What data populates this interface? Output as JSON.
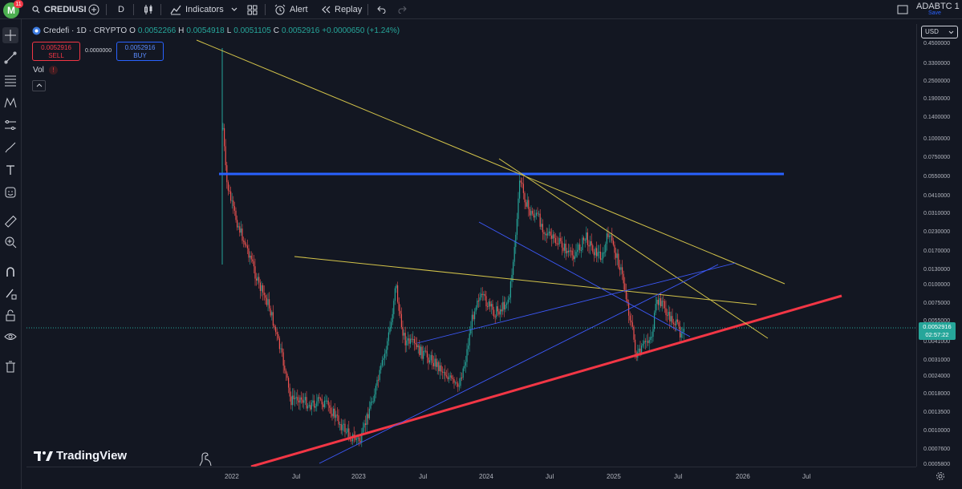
{
  "topbar": {
    "logo_letter": "M",
    "badge": "11",
    "symbol": "CREDIUSI",
    "interval": "D",
    "indicators": "Indicators",
    "alert": "Alert",
    "replay": "Replay",
    "layout_name": "ADABTC 1",
    "save": "Save"
  },
  "legend": {
    "name": "Credefi · 1D · CRYPTO",
    "o_label": "O",
    "o": "0.0052266",
    "h_label": "H",
    "h": "0.0054918",
    "l_label": "L",
    "l": "0.0051105",
    "c_label": "C",
    "c": "0.0052916",
    "change": "+0.0000650 (+1.24%)"
  },
  "trade": {
    "sell_price": "0.0052916",
    "sell_label": "SELL",
    "spread": "0.0000000",
    "buy_price": "0.0052916",
    "buy_label": "BUY"
  },
  "volume": {
    "label": "Vol",
    "warn": "!"
  },
  "price_axis": {
    "currency": "USD",
    "ticks": [
      "0.4500000",
      "0.3300000",
      "0.2500000",
      "0.1900000",
      "0.1400000",
      "0.1000000",
      "0.0750000",
      "0.0550000",
      "0.0410000",
      "0.0310000",
      "0.0230000",
      "0.0170000",
      "0.0130000",
      "0.0100000",
      "0.0075000",
      "0.0055000",
      "0.0041000",
      "0.0031000",
      "0.0024000",
      "0.0018000",
      "0.0013500",
      "0.0010000",
      "0.0007600",
      "0.0005800"
    ],
    "current_price": "0.0052916",
    "countdown": "02:57:22"
  },
  "time_axis": {
    "ticks": [
      "2022",
      "Jul",
      "2023",
      "Jul",
      "2024",
      "Jul",
      "2025",
      "Jul",
      "2026",
      "Jul"
    ]
  },
  "branding": {
    "tv": "TradingView"
  },
  "colors": {
    "bg": "#131722",
    "up": "#26a69a",
    "down": "#ef5350",
    "support": "#f23645",
    "resistance": "#2962ff",
    "trend": "#d4c44a",
    "channel": "#3d5afe"
  }
}
